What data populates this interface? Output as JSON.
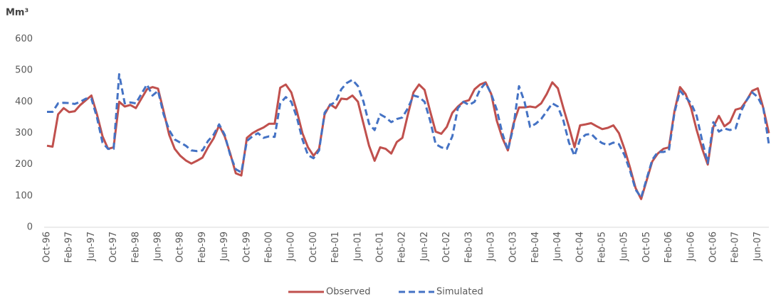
{
  "chart_data": {
    "type": "line",
    "y_label": "Mm³",
    "categories": [
      "Oct-96",
      null,
      null,
      null,
      "Feb-97",
      null,
      null,
      null,
      "Jun-97",
      null,
      null,
      null,
      "Oct-97",
      null,
      null,
      null,
      "Feb-98",
      null,
      null,
      null,
      "Jun-98",
      null,
      null,
      null,
      "Oct-98",
      null,
      null,
      null,
      "Feb-99",
      null,
      null,
      null,
      "Jun-99",
      null,
      null,
      null,
      "Oct-99",
      null,
      null,
      null,
      "Feb-00",
      null,
      null,
      null,
      "Jun-00",
      null,
      null,
      null,
      "Oct-00",
      null,
      null,
      null,
      "Feb-01",
      null,
      null,
      null,
      "Jun-01",
      null,
      null,
      null,
      "Oct-01",
      null,
      null,
      null,
      "Feb-02",
      null,
      null,
      null,
      "Jun-02",
      null,
      null,
      null,
      "Oct-02",
      null,
      null,
      null,
      "Feb-03",
      null,
      null,
      null,
      "Jun-03",
      null,
      null,
      null,
      "Oct-03",
      null,
      null,
      null,
      "Feb-04",
      null,
      null,
      null,
      "Jun-04",
      null,
      null,
      null,
      "Oct-04",
      null,
      null,
      null,
      "Feb-05",
      null,
      null,
      null,
      "Jun-05",
      null,
      null,
      null,
      "Oct-05",
      null,
      null,
      null,
      "Feb-06",
      null,
      null,
      null,
      "Jun-06",
      null,
      null,
      null,
      "Oct-06",
      null,
      null,
      null,
      "Feb-07",
      null,
      null,
      null,
      "Jun-07",
      null,
      null
    ],
    "series": [
      {
        "name": "Observed",
        "color": "#c0504d",
        "dash": false,
        "values": [
          260,
          257,
          360,
          380,
          367,
          370,
          390,
          405,
          420,
          360,
          290,
          250,
          255,
          400,
          385,
          390,
          380,
          410,
          440,
          447,
          442,
          370,
          295,
          250,
          228,
          213,
          203,
          212,
          222,
          255,
          283,
          325,
          290,
          235,
          172,
          165,
          285,
          300,
          310,
          318,
          330,
          330,
          445,
          455,
          430,
          370,
          300,
          255,
          228,
          250,
          360,
          392,
          380,
          410,
          408,
          420,
          400,
          330,
          260,
          212,
          255,
          250,
          235,
          272,
          285,
          360,
          430,
          455,
          438,
          370,
          305,
          298,
          320,
          365,
          385,
          400,
          405,
          440,
          455,
          462,
          425,
          340,
          285,
          245,
          330,
          382,
          382,
          385,
          382,
          395,
          425,
          462,
          443,
          380,
          320,
          255,
          325,
          328,
          332,
          322,
          313,
          317,
          325,
          300,
          250,
          190,
          125,
          90,
          150,
          210,
          235,
          250,
          255,
          370,
          447,
          425,
          380,
          310,
          250,
          200,
          320,
          355,
          322,
          335,
          375,
          380,
          405,
          435,
          443,
          380,
          300
        ]
      },
      {
        "name": "Simulated",
        "color": "#4472c4",
        "dash": true,
        "values": [
          368,
          368,
          395,
          397,
          396,
          393,
          400,
          410,
          410,
          350,
          270,
          250,
          250,
          488,
          395,
          398,
          395,
          425,
          455,
          420,
          435,
          360,
          310,
          280,
          270,
          260,
          245,
          243,
          245,
          275,
          295,
          328,
          295,
          230,
          185,
          175,
          275,
          290,
          300,
          285,
          290,
          288,
          395,
          415,
          400,
          350,
          280,
          230,
          220,
          245,
          365,
          390,
          400,
          440,
          460,
          470,
          450,
          400,
          330,
          310,
          360,
          350,
          335,
          345,
          350,
          380,
          420,
          415,
          400,
          340,
          265,
          255,
          250,
          290,
          380,
          400,
          390,
          400,
          440,
          460,
          425,
          375,
          300,
          245,
          320,
          450,
          400,
          320,
          330,
          345,
          370,
          395,
          385,
          340,
          270,
          228,
          280,
          295,
          298,
          280,
          268,
          262,
          270,
          265,
          230,
          180,
          120,
          95,
          155,
          215,
          240,
          240,
          245,
          365,
          435,
          415,
          395,
          355,
          275,
          205,
          335,
          305,
          315,
          310,
          315,
          370,
          405,
          430,
          415,
          380,
          265
        ]
      }
    ],
    "ylim": [
      0,
      600
    ],
    "yticks": [
      0,
      100,
      200,
      300,
      400,
      500,
      600
    ],
    "grid": false,
    "legend": "bottom"
  }
}
